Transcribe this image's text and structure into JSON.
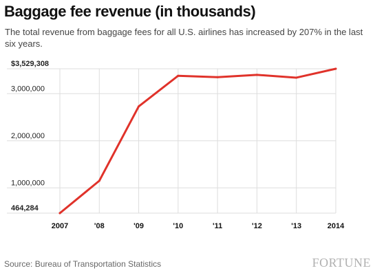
{
  "title": "Baggage fee revenue (in thousands)",
  "subtitle": "The total revenue from baggage fees for all U.S. airlines has increased by 207% in the last six years.",
  "source": "Source: Bureau of Transportation Statistics",
  "brand": "FORTUNE",
  "colors": {
    "line": "#e0322a",
    "grid": "#dddddd",
    "plot_border": "#cccccc"
  },
  "chart_data": {
    "type": "line",
    "title": "Baggage fee revenue (in thousands)",
    "xlabel": "",
    "ylabel": "",
    "ylim": [
      464284,
      3529308
    ],
    "grid": true,
    "categories": [
      "2007",
      "'08",
      "'09",
      "'10",
      "'11",
      "'12",
      "'13",
      "2014"
    ],
    "y_ticks": [
      {
        "value": 3529308,
        "label": "$3,529,308",
        "bold": true
      },
      {
        "value": 3000000,
        "label": "3,000,000",
        "bold": false
      },
      {
        "value": 2000000,
        "label": "2,000,000",
        "bold": false
      },
      {
        "value": 1000000,
        "label": "1,000,000",
        "bold": false
      },
      {
        "value": 464284,
        "label": "464,284",
        "bold": true
      }
    ],
    "series": [
      {
        "values": [
          464284,
          1150000,
          2730000,
          3380000,
          3350000,
          3400000,
          3340000,
          3529308
        ]
      }
    ]
  }
}
